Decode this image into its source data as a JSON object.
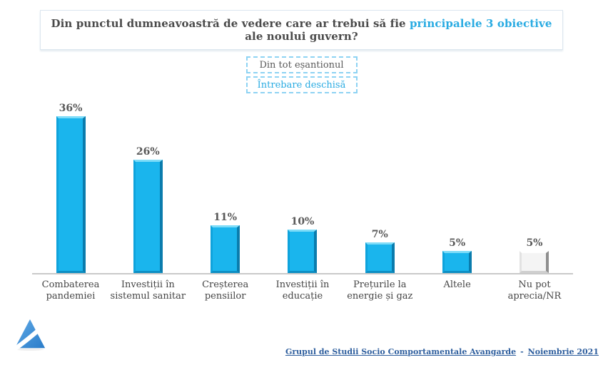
{
  "title": {
    "prefix": "Din punctul dumneavoastră de vedere care ar trebui să fie ",
    "highlight": "principalele 3 obiective",
    "suffix": " ale noului guvern?"
  },
  "tags": {
    "sample": "Din tot eșantionul",
    "question_type": "Întrebare deschisă"
  },
  "chart_data": {
    "type": "bar",
    "categories": [
      "Combaterea pandemiei",
      "Investiții în sistemul sanitar",
      "Creșterea pensiilor",
      "Investiții în educație",
      "Prețurile la energie și gaz",
      "Altele",
      "Nu pot aprecia/NR"
    ],
    "values": [
      36,
      26,
      11,
      10,
      7,
      5,
      5
    ],
    "value_labels": [
      "36%",
      "26%",
      "11%",
      "10%",
      "7%",
      "5%",
      "5%"
    ],
    "bar_styles": [
      "blue",
      "blue",
      "blue",
      "blue",
      "blue",
      "blue",
      "gray"
    ],
    "title": "Din punctul dumneavoastră de vedere care ar trebui să fie principalele 3 obiective ale noului guvern?",
    "xlabel": "",
    "ylabel": "",
    "ylim": [
      0,
      40
    ],
    "grid": false,
    "legend": false
  },
  "colors": {
    "accent_blue": "#29abe2",
    "bar_blue": "#1ab5ed",
    "bar_gray": "#f4f4f4",
    "axis_gray": "#c9c9c9",
    "footer_blue": "#2f5f9e",
    "text_dark": "#4a4a4a"
  },
  "logo": {
    "name": "avangarde-logo"
  },
  "footer": {
    "org": "Grupul de Studii Socio Comportamentale Avangarde",
    "separator": "-",
    "date": "Noiembrie 2021"
  }
}
